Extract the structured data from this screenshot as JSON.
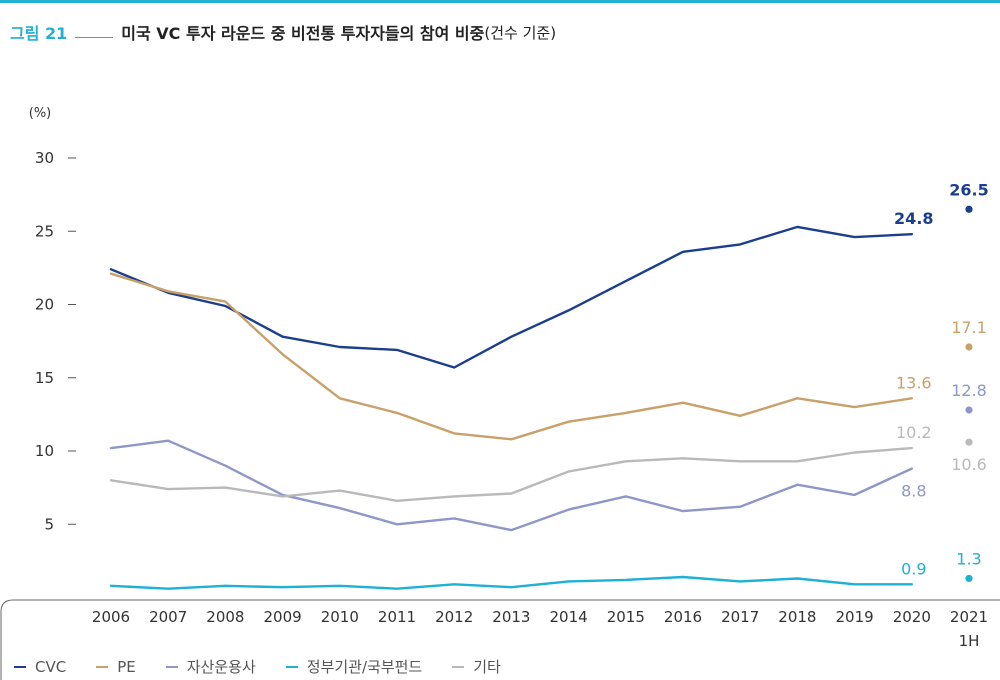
{
  "figure": {
    "label": "그림 21",
    "title": "미국 VC 투자 라운드 중 비전통 투자자들의 참여 비중",
    "subtitle": "(건수 기준)"
  },
  "chart_data": {
    "type": "line",
    "unit_label": "(%)",
    "y_ticks": [
      5,
      10,
      15,
      20,
      25,
      30
    ],
    "ylim": [
      0,
      30
    ],
    "x": [
      "2006",
      "2007",
      "2008",
      "2009",
      "2010",
      "2011",
      "2012",
      "2013",
      "2014",
      "2015",
      "2016",
      "2017",
      "2018",
      "2019",
      "2020"
    ],
    "x_last": {
      "year": "2021",
      "period": "1H"
    },
    "grid": false,
    "legend_position": "bottom",
    "series": [
      {
        "name": "CVC",
        "color": "#1c3f8c",
        "values": [
          22.4,
          20.8,
          19.9,
          17.8,
          17.1,
          16.9,
          15.7,
          17.8,
          19.6,
          21.6,
          23.6,
          24.1,
          25.3,
          24.6,
          24.8
        ],
        "last_label": "24.8",
        "h1_2021": 26.5,
        "h1_label": "26.5"
      },
      {
        "name": "PE",
        "color": "#c8a06a",
        "values": [
          22.1,
          20.9,
          20.2,
          16.6,
          13.6,
          12.6,
          11.2,
          10.8,
          12.0,
          12.6,
          13.3,
          12.4,
          13.6,
          13.0,
          13.6
        ],
        "last_label": "13.6",
        "h1_2021": 17.1,
        "h1_label": "17.1"
      },
      {
        "name": "자산운용사",
        "color": "#8f97c8",
        "values": [
          10.2,
          10.7,
          9.0,
          7.0,
          6.1,
          5.0,
          5.4,
          4.6,
          6.0,
          6.9,
          5.9,
          6.2,
          7.7,
          7.0,
          8.8
        ],
        "last_label": "8.8",
        "h1_2021": 12.8,
        "h1_label": "12.8"
      },
      {
        "name": "정부기관/국부펀드",
        "color": "#1fb0d6",
        "values": [
          0.8,
          0.6,
          0.8,
          0.7,
          0.8,
          0.6,
          0.9,
          0.7,
          1.1,
          1.2,
          1.4,
          1.1,
          1.3,
          0.9,
          0.9
        ],
        "last_label": "0.9",
        "h1_2021": 1.3,
        "h1_label": "1.3"
      },
      {
        "name": "기타",
        "color": "#b9b9b9",
        "values": [
          8.0,
          7.4,
          7.5,
          6.9,
          7.3,
          6.6,
          6.9,
          7.1,
          8.6,
          9.3,
          9.5,
          9.3,
          9.3,
          9.9,
          10.2
        ],
        "last_label": "10.2",
        "h1_2021": 10.6,
        "h1_label": "10.6"
      }
    ]
  }
}
